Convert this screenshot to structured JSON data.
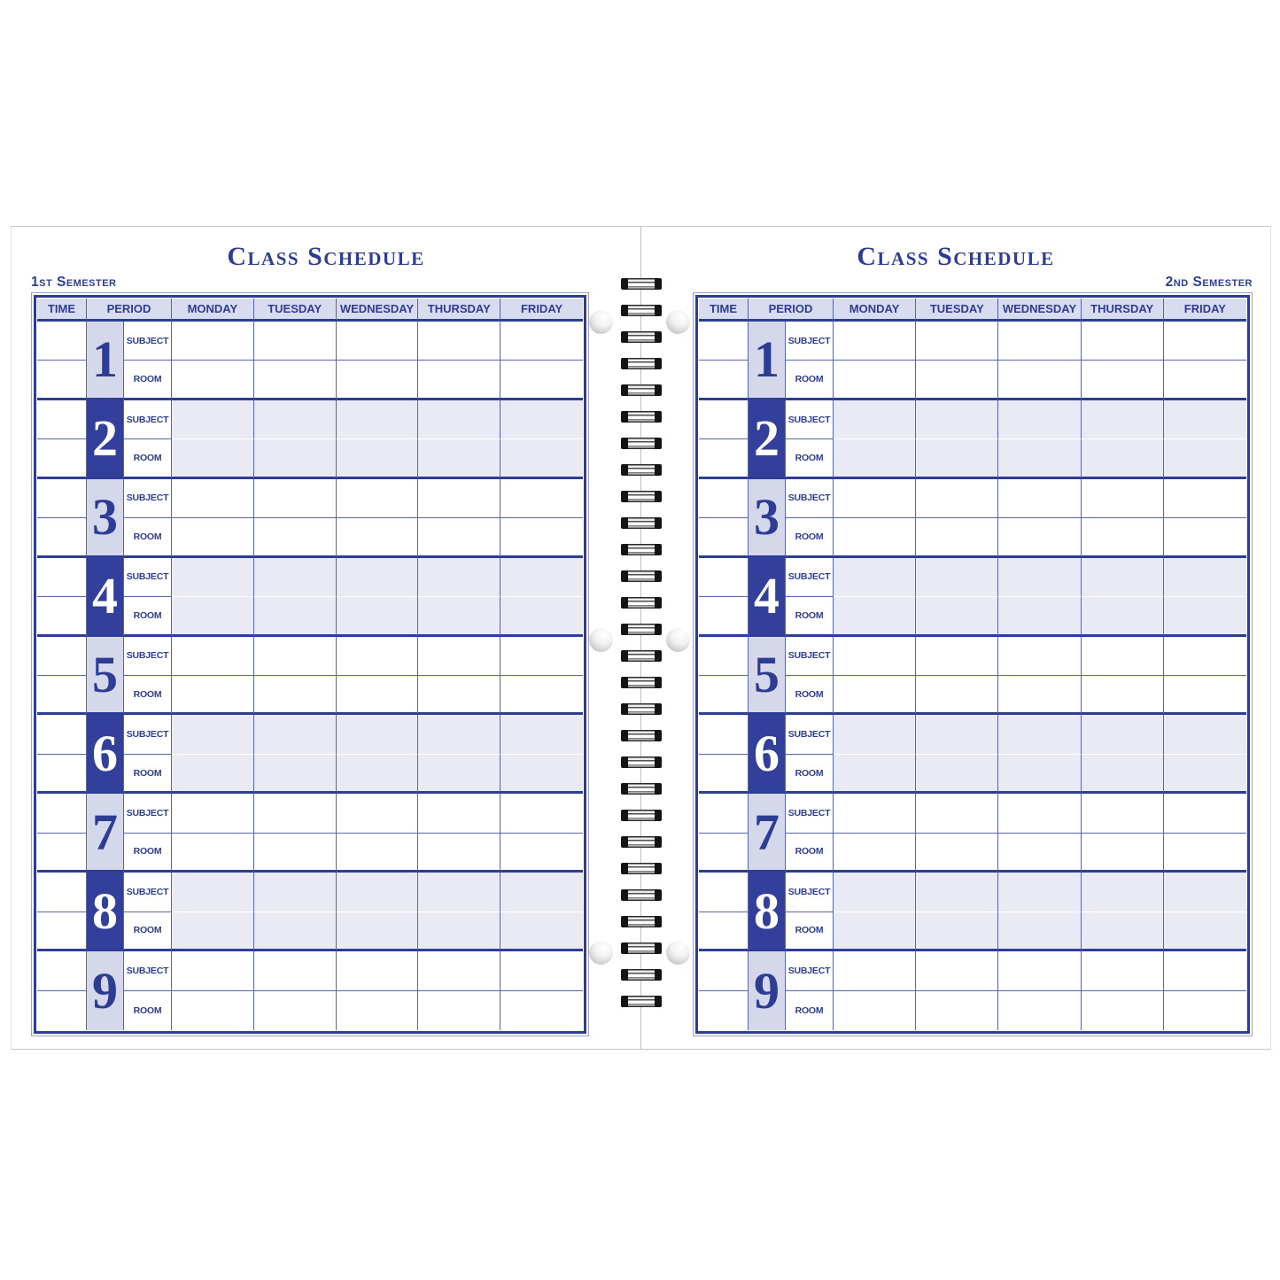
{
  "document": {
    "pages": [
      {
        "title": "Class Schedule",
        "semester": "1st Semester",
        "semester_position": "left"
      },
      {
        "title": "Class Schedule",
        "semester": "2nd Semester",
        "semester_position": "right"
      }
    ],
    "table": {
      "column_headers": [
        "TIME",
        "PERIOD",
        "MONDAY",
        "TUESDAY",
        "WEDNESDAY",
        "THURSDAY",
        "FRIDAY"
      ],
      "row_labels": {
        "subject": "SUBJECT",
        "room": "ROOM"
      },
      "periods": [
        {
          "number": "1",
          "shaded": false
        },
        {
          "number": "2",
          "shaded": true
        },
        {
          "number": "3",
          "shaded": false
        },
        {
          "number": "4",
          "shaded": true
        },
        {
          "number": "5",
          "shaded": false
        },
        {
          "number": "6",
          "shaded": true
        },
        {
          "number": "7",
          "shaded": false
        },
        {
          "number": "8",
          "shaded": true
        },
        {
          "number": "9",
          "shaded": false
        }
      ],
      "cells_empty": true
    },
    "binding": {
      "coil_count": 28,
      "holes_per_page": 3
    },
    "colors": {
      "ink_blue": "#2e3d94",
      "grid_line_blue": "#5a66ab",
      "header_fill": "#d9dbee",
      "period_number_light_fill": "#d5d7ea",
      "period_number_dark_fill": "#32409b",
      "shaded_row_fill": "#e9eaf4",
      "page_edge_gray": "#c6c6c6"
    }
  }
}
